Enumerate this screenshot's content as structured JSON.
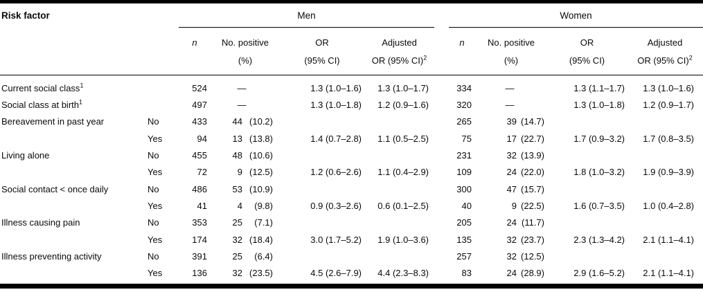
{
  "table": {
    "title_col": "Risk factor",
    "groups": [
      {
        "label": "Men"
      },
      {
        "label": "Women"
      }
    ],
    "col_headers": {
      "n": "n",
      "pos_line1": "No. positive",
      "pos_line2": "(%)",
      "or_line1": "OR",
      "or_line2": "(95% CI)",
      "adj_line1": "Adjusted",
      "adj_line2": "OR (95% CI)",
      "adj_sup": "2"
    },
    "placeholder_dash": "—",
    "rows": [
      {
        "label": "Current social class",
        "label_sup": "1",
        "sub": "",
        "men": {
          "n": "524",
          "pos_n": "—",
          "pos_pct": "",
          "or": "1.3 (1.0–1.6)",
          "adj": "1.3 (1.0–1.7)"
        },
        "women": {
          "n": "334",
          "pos_n": "—",
          "pos_pct": "",
          "or": "1.3 (1.1–1.7)",
          "adj": "1.3 (1.0–1.6)"
        }
      },
      {
        "label": "Social class at birth",
        "label_sup": "1",
        "sub": "",
        "men": {
          "n": "497",
          "pos_n": "—",
          "pos_pct": "",
          "or": "1.3 (1.0–1.8)",
          "adj": "1.2 (0.9–1.6)"
        },
        "women": {
          "n": "320",
          "pos_n": "—",
          "pos_pct": "",
          "or": "1.3 (1.0–1.8)",
          "adj": "1.2 (0.9–1.7)"
        }
      },
      {
        "label": "Bereavement in past year",
        "label_sup": "",
        "sub": "No",
        "men": {
          "n": "433",
          "pos_n": "44",
          "pos_pct": "(10.2)",
          "or": "",
          "adj": ""
        },
        "women": {
          "n": "265",
          "pos_n": "39",
          "pos_pct": "(14.7)",
          "or": "",
          "adj": ""
        }
      },
      {
        "label": "",
        "label_sup": "",
        "sub": "Yes",
        "men": {
          "n": "94",
          "pos_n": "13",
          "pos_pct": "(13.8)",
          "or": "1.4 (0.7–2.8)",
          "adj": "1.1 (0.5–2.5)"
        },
        "women": {
          "n": "75",
          "pos_n": "17",
          "pos_pct": "(22.7)",
          "or": "1.7 (0.9–3.2)",
          "adj": "1.7 (0.8–3.5)"
        }
      },
      {
        "label": "Living alone",
        "label_sup": "",
        "sub": "No",
        "men": {
          "n": "455",
          "pos_n": "48",
          "pos_pct": "(10.6)",
          "or": "",
          "adj": ""
        },
        "women": {
          "n": "231",
          "pos_n": "32",
          "pos_pct": "(13.9)",
          "or": "",
          "adj": ""
        }
      },
      {
        "label": "",
        "label_sup": "",
        "sub": "Yes",
        "men": {
          "n": "72",
          "pos_n": "9",
          "pos_pct": "(12.5)",
          "or": "1.2 (0.6–2.6)",
          "adj": "1.1 (0.4–2.9)"
        },
        "women": {
          "n": "109",
          "pos_n": "24",
          "pos_pct": "(22.0)",
          "or": "1.8 (1.0–3.2)",
          "adj": "1.9 (0.9–3.9)"
        }
      },
      {
        "label": "Social contact < once daily",
        "label_sup": "",
        "sub": "No",
        "men": {
          "n": "486",
          "pos_n": "53",
          "pos_pct": "(10.9)",
          "or": "",
          "adj": ""
        },
        "women": {
          "n": "300",
          "pos_n": "47",
          "pos_pct": "(15.7)",
          "or": "",
          "adj": ""
        }
      },
      {
        "label": "",
        "label_sup": "",
        "sub": "Yes",
        "men": {
          "n": "41",
          "pos_n": "4",
          "pos_pct": "(9.8)",
          "or": "0.9 (0.3–2.6)",
          "adj": "0.6 (0.1–2.5)"
        },
        "women": {
          "n": "40",
          "pos_n": "9",
          "pos_pct": "(22.5)",
          "or": "1.6 (0.7–3.5)",
          "adj": "1.0 (0.4–2.8)"
        }
      },
      {
        "label": "Illness causing pain",
        "label_sup": "",
        "sub": "No",
        "men": {
          "n": "353",
          "pos_n": "25",
          "pos_pct": "(7.1)",
          "or": "",
          "adj": ""
        },
        "women": {
          "n": "205",
          "pos_n": "24",
          "pos_pct": "(11.7)",
          "or": "",
          "adj": ""
        }
      },
      {
        "label": "",
        "label_sup": "",
        "sub": "Yes",
        "men": {
          "n": "174",
          "pos_n": "32",
          "pos_pct": "(18.4)",
          "or": "3.0 (1.7–5.2)",
          "adj": "1.9 (1.0–3.6)"
        },
        "women": {
          "n": "135",
          "pos_n": "32",
          "pos_pct": "(23.7)",
          "or": "2.3 (1.3–4.2)",
          "adj": "2.1 (1.1–4.1)"
        }
      },
      {
        "label": "Illness preventing activity",
        "label_sup": "",
        "sub": "No",
        "men": {
          "n": "391",
          "pos_n": "25",
          "pos_pct": "(6.4)",
          "or": "",
          "adj": ""
        },
        "women": {
          "n": "257",
          "pos_n": "32",
          "pos_pct": "(12.5)",
          "or": "",
          "adj": ""
        }
      },
      {
        "label": "",
        "label_sup": "",
        "sub": "Yes",
        "men": {
          "n": "136",
          "pos_n": "32",
          "pos_pct": "(23.5)",
          "or": "4.5 (2.6–7.9)",
          "adj": "4.4 (2.3–8.3)"
        },
        "women": {
          "n": "83",
          "pos_n": "24",
          "pos_pct": "(28.9)",
          "or": "2.9 (1.6–5.2)",
          "adj": "2.1 (1.1–4.1)"
        }
      }
    ]
  }
}
